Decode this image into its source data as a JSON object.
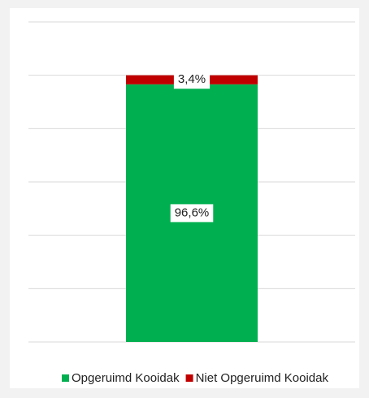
{
  "chart_data": {
    "type": "stacked_bar",
    "categories": [
      null
    ],
    "series": [
      {
        "name": "Opgeruimd Kooidak",
        "color": "#00b050",
        "values": [
          96.6
        ],
        "value_labels": [
          "96,6%"
        ]
      },
      {
        "name": "Niet Opgeruimd Kooidak",
        "color": "#c00000",
        "values": [
          3.4
        ],
        "value_labels": [
          "3,4%"
        ]
      }
    ],
    "ylim": [
      0,
      120
    ],
    "yticks": [
      0,
      20,
      40,
      60,
      80,
      100,
      120
    ],
    "grid": true,
    "legend": "bottom"
  }
}
